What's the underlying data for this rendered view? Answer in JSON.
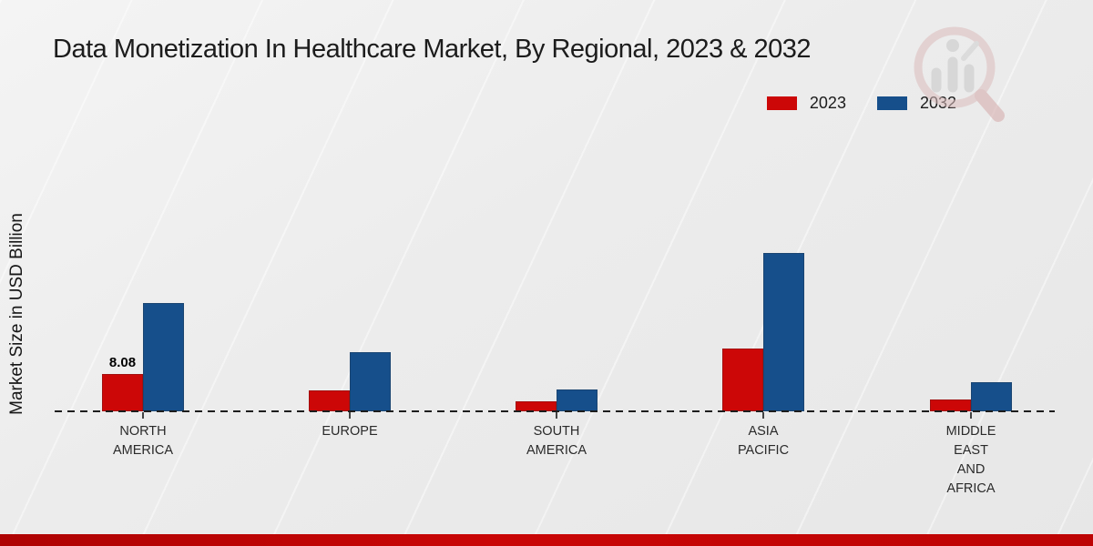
{
  "chart_data": {
    "type": "bar",
    "title": "Data Monetization In Healthcare Market, By Regional, 2023 & 2032",
    "ylabel": "Market Size in USD Billion",
    "xlabel": "",
    "categories": [
      "NORTH\nAMERICA",
      "EUROPE",
      "SOUTH\nAMERICA",
      "ASIA\nPACIFIC",
      "MIDDLE\nEAST\nAND\nAFRICA"
    ],
    "series": [
      {
        "name": "2023",
        "color": "#cc0707",
        "values": [
          8.08,
          4.5,
          2.2,
          13.6,
          2.6
        ]
      },
      {
        "name": "2032",
        "color": "#164f8b",
        "values": [
          23.4,
          12.8,
          4.7,
          34.3,
          6.3
        ]
      }
    ],
    "annotations": [
      {
        "text": "8.08",
        "series_index": 0,
        "category_index": 0
      }
    ],
    "ylim": [
      0,
      40
    ],
    "grid": false,
    "legend_position": "top-right",
    "baseline_style": "dashed"
  },
  "watermark": {
    "icon": "magnifier-bar-chart-logo"
  },
  "footer": {
    "band_color": "#c00505"
  }
}
